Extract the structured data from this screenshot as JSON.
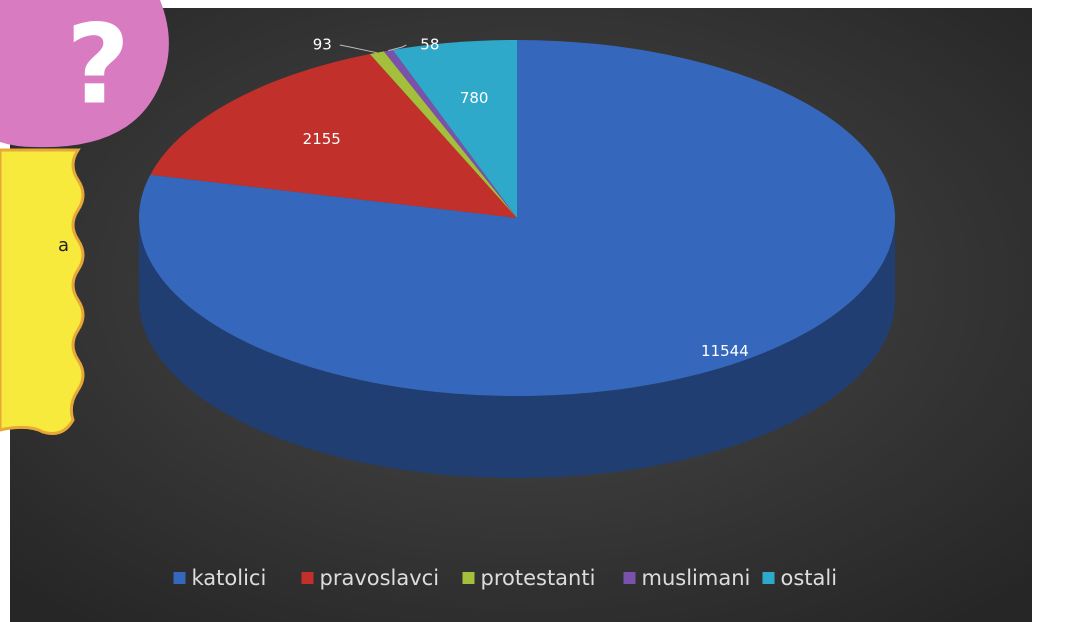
{
  "chart_data": {
    "type": "pie3d",
    "categories": [
      "katolici",
      "pravoslavci",
      "protestanti",
      "muslimani",
      "ostali"
    ],
    "values": [
      11544,
      2155,
      93,
      58,
      780
    ],
    "colors": [
      "#3568bd",
      "#c2302c",
      "#a3bf3c",
      "#7b52ab",
      "#2fa9c9"
    ],
    "legend": "bottom"
  },
  "overlay": {
    "symbol": "?",
    "text": "a"
  }
}
